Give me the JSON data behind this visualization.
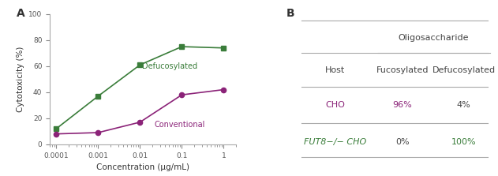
{
  "panel_a": {
    "x": [
      0.0001,
      0.001,
      0.01,
      0.1,
      1
    ],
    "defucosylated_y": [
      12,
      37,
      61,
      75,
      74
    ],
    "conventional_y": [
      8,
      9,
      17,
      38,
      42
    ],
    "defucosylated_color": "#3a7d3a",
    "conventional_color": "#8b2378",
    "xlabel": "Concentration (μg/mL)",
    "ylabel": "Cytotoxicity (%)",
    "ylim": [
      0,
      100
    ],
    "yticks": [
      0,
      20,
      40,
      60,
      80,
      100
    ],
    "label_A": "A",
    "defucosylated_label": "Defucosylated",
    "conventional_label": "Conventional"
  },
  "panel_b": {
    "label_B": "B",
    "header_oligosaccharide": "Oligosaccharide",
    "col_host": "Host",
    "col_fucosylated": "Fucosylated",
    "col_defucosylated": "Defucosylated",
    "row1_host": "CHO",
    "row1_fuco": "96%",
    "row1_defuco": "4%",
    "row1_host_color": "#8b2378",
    "row1_fuco_color": "#8b2378",
    "row1_defuco_color": "#444444",
    "row2_host": "FUT8−/− CHO",
    "row2_fuco": "0%",
    "row2_defuco": "100%",
    "row2_host_color": "#3a7d3a",
    "row2_fuco_color": "#444444",
    "row2_defuco_color": "#3a7d3a",
    "line_color": "#aaaaaa",
    "text_color": "#444444"
  }
}
